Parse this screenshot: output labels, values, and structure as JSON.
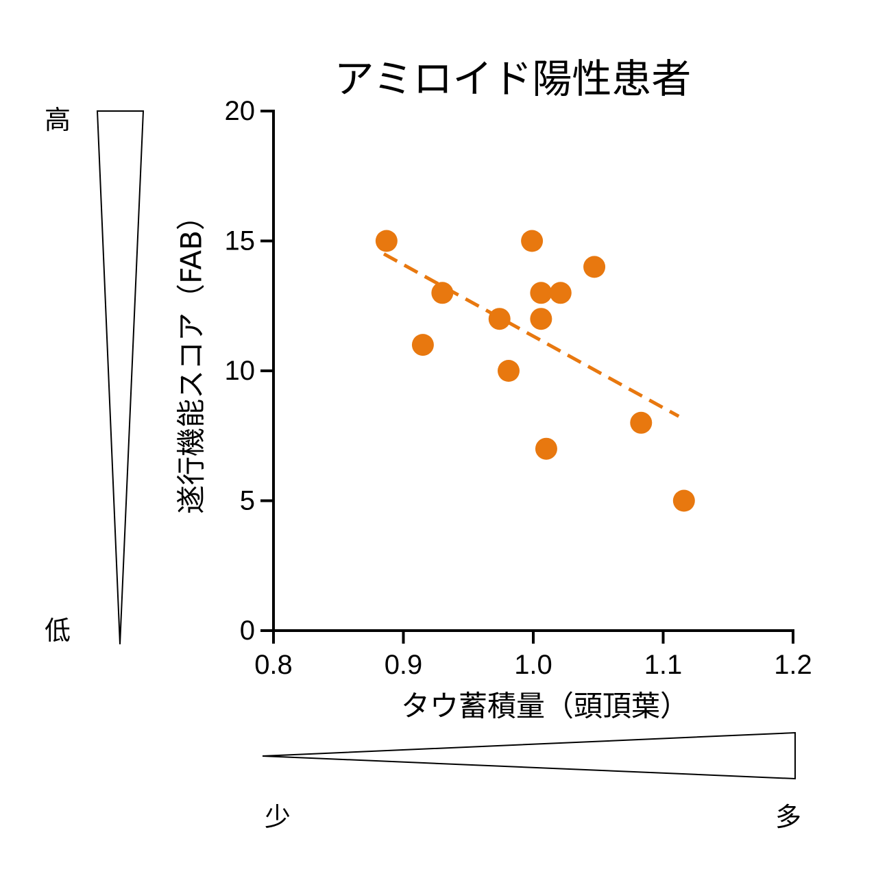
{
  "chart_data": {
    "type": "scatter",
    "title": "アミロイド陽性患者",
    "xlabel": "タウ蓄積量（頭頂葉）",
    "ylabel": "遂行機能スコア（FAB）",
    "xlim": [
      0.8,
      1.2
    ],
    "ylim": [
      0,
      20
    ],
    "xticks": [
      0.8,
      0.9,
      1.0,
      1.1,
      1.2
    ],
    "xtick_labels": [
      "0.8",
      "0.9",
      "1.0",
      "1.1",
      "1.2"
    ],
    "yticks": [
      0,
      5,
      10,
      15,
      20
    ],
    "ytick_labels": [
      "0",
      "5",
      "10",
      "15",
      "20"
    ],
    "grid": false,
    "legend": false,
    "series": [
      {
        "color": "#E8780F",
        "points": [
          {
            "x": 0.887,
            "y": 15
          },
          {
            "x": 0.915,
            "y": 11
          },
          {
            "x": 0.93,
            "y": 13
          },
          {
            "x": 0.974,
            "y": 12
          },
          {
            "x": 0.981,
            "y": 10
          },
          {
            "x": 0.999,
            "y": 15
          },
          {
            "x": 1.006,
            "y": 13
          },
          {
            "x": 1.006,
            "y": 12
          },
          {
            "x": 1.01,
            "y": 7
          },
          {
            "x": 1.021,
            "y": 13
          },
          {
            "x": 1.047,
            "y": 14
          },
          {
            "x": 1.083,
            "y": 8
          },
          {
            "x": 1.116,
            "y": 5
          }
        ]
      }
    ],
    "trendline": {
      "dashed": true,
      "color": "#E8780F",
      "x": [
        0.885,
        1.112
      ],
      "y": [
        14.5,
        8.25
      ]
    }
  },
  "scale_indicators": {
    "y_axis": {
      "high": "高",
      "low": "低"
    },
    "x_axis": {
      "low": "少",
      "high": "多"
    }
  }
}
